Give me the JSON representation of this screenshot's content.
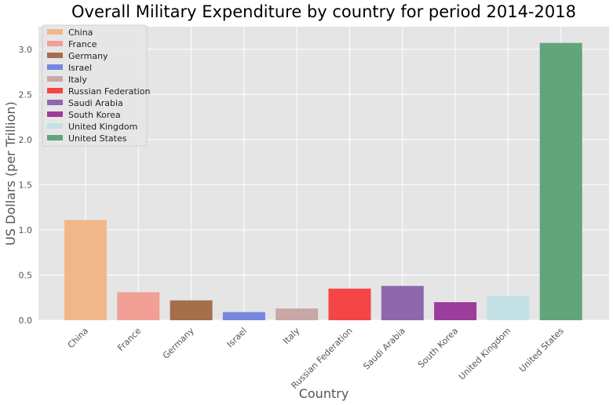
{
  "chart_data": {
    "type": "bar",
    "title": "Overall Military Expenditure by country for period 2014-2018",
    "xlabel": "Country",
    "ylabel": "US Dollars (per Trillion)",
    "ylim": [
      0,
      3.25
    ],
    "yticks": [
      "0.0",
      "0.5",
      "1.0",
      "1.5",
      "2.0",
      "2.5",
      "3.0"
    ],
    "grid": true,
    "legend_position": "top-left",
    "categories": [
      "China",
      "France",
      "Germany",
      "Israel",
      "Italy",
      "Russian Federation",
      "Saudi Arabia",
      "South Korea",
      "United Kingdom",
      "United States"
    ],
    "values": [
      1.11,
      0.31,
      0.22,
      0.09,
      0.13,
      0.35,
      0.38,
      0.2,
      0.27,
      3.07
    ],
    "colors": [
      "#f0b88a",
      "#f29f96",
      "#a46f4a",
      "#7487dd",
      "#c8a7a5",
      "#f44646",
      "#8f67ad",
      "#9c3d9c",
      "#c3e1e5",
      "#62a57c"
    ],
    "background": "#e5e5e5",
    "grid_color": "#ffffff"
  }
}
